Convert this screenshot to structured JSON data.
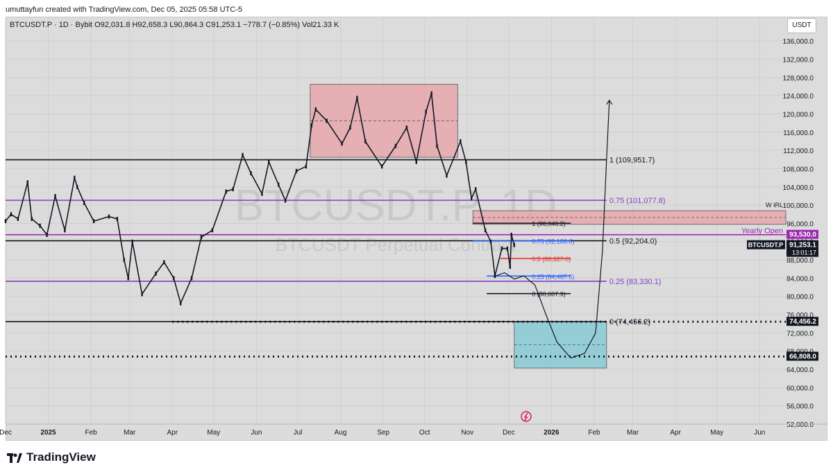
{
  "header": {
    "created_by": "umuttayfun created with TradingView.com, Dec 05, 2025 05:58 UTC-5"
  },
  "symbol_line": {
    "symbol": "BTCUSDT.P · 1D · Bybit",
    "ohlc": "O92,031.8  H92,658.3  L90,864.3  C91,253.1  −778.7 (−0.85%)  Vol21.33 K"
  },
  "currency": "USDT",
  "watermark": {
    "big": "BTCUSDT.P, 1D",
    "small": "BTCUSDT Perpetual Contract"
  },
  "footer": {
    "brand": "TradingView"
  },
  "chart_data": {
    "type": "candlestick",
    "instrument": "BTCUSDT.P",
    "interval": "1D",
    "exchange": "Bybit",
    "ylim": [
      52000,
      138000
    ],
    "y_ticks": [
      {
        "value": 52000,
        "label": "52,000.0"
      },
      {
        "value": 56000,
        "label": "56,000.0"
      },
      {
        "value": 60000,
        "label": "60,000.0"
      },
      {
        "value": 64000,
        "label": "64,000.0"
      },
      {
        "value": 68000,
        "label": "68,000.0"
      },
      {
        "value": 72000,
        "label": "72,000.0"
      },
      {
        "value": 76000,
        "label": "76,000.0"
      },
      {
        "value": 80000,
        "label": "80,000.0"
      },
      {
        "value": 84000,
        "label": "84,000.0"
      },
      {
        "value": 88000,
        "label": "88,000.0"
      },
      {
        "value": 92000,
        "label": "92,000.0"
      },
      {
        "value": 96000,
        "label": "96,000.0"
      },
      {
        "value": 100000,
        "label": "100,000.0"
      },
      {
        "value": 104000,
        "label": "104,000.0"
      },
      {
        "value": 108000,
        "label": "108,000.0"
      },
      {
        "value": 112000,
        "label": "112,000.0"
      },
      {
        "value": 116000,
        "label": "116,000.0"
      },
      {
        "value": 120000,
        "label": "120,000.0"
      },
      {
        "value": 124000,
        "label": "124,000.0"
      },
      {
        "value": 128000,
        "label": "128,000.0"
      },
      {
        "value": 132000,
        "label": "132,000.0"
      },
      {
        "value": 136000,
        "label": "136,000.0"
      }
    ],
    "x_ticks": [
      {
        "date": "2024-12-01",
        "label": "Dec"
      },
      {
        "date": "2025-01-01",
        "label": "2025"
      },
      {
        "date": "2025-02-01",
        "label": "Feb"
      },
      {
        "date": "2025-03-01",
        "label": "Mar"
      },
      {
        "date": "2025-04-01",
        "label": "Apr"
      },
      {
        "date": "2025-05-01",
        "label": "May"
      },
      {
        "date": "2025-06-01",
        "label": "Jun"
      },
      {
        "date": "2025-07-01",
        "label": "Jul"
      },
      {
        "date": "2025-08-01",
        "label": "Aug"
      },
      {
        "date": "2025-09-01",
        "label": "Sep"
      },
      {
        "date": "2025-10-01",
        "label": "Oct"
      },
      {
        "date": "2025-11-01",
        "label": "Nov"
      },
      {
        "date": "2025-12-01",
        "label": "Dec"
      },
      {
        "date": "2026-01-01",
        "label": "2026"
      },
      {
        "date": "2026-02-01",
        "label": "Feb"
      },
      {
        "date": "2026-03-01",
        "label": "Mar"
      },
      {
        "date": "2026-04-01",
        "label": "Apr"
      },
      {
        "date": "2026-05-01",
        "label": "May"
      },
      {
        "date": "2026-06-01",
        "label": "Jun"
      }
    ],
    "x_range": [
      "2024-12-01",
      "2026-06-20"
    ],
    "series": [
      {
        "close": [
          [
            "2024-12-01",
            96500
          ],
          [
            "2024-12-05",
            98000
          ],
          [
            "2024-12-10",
            97000
          ],
          [
            "2024-12-17",
            105000
          ],
          [
            "2024-12-20",
            97000
          ],
          [
            "2024-12-26",
            95500
          ],
          [
            "2024-12-31",
            93500
          ],
          [
            "2025-01-06",
            102000
          ],
          [
            "2025-01-13",
            94500
          ],
          [
            "2025-01-20",
            106000
          ],
          [
            "2025-01-22",
            104000
          ],
          [
            "2025-01-27",
            100500
          ],
          [
            "2025-02-03",
            96500
          ],
          [
            "2025-02-14",
            97500
          ],
          [
            "2025-02-20",
            97000
          ],
          [
            "2025-02-25",
            88000
          ],
          [
            "2025-02-28",
            84000
          ],
          [
            "2025-03-03",
            92000
          ],
          [
            "2025-03-10",
            80500
          ],
          [
            "2025-03-20",
            85000
          ],
          [
            "2025-03-26",
            87500
          ],
          [
            "2025-04-02",
            84000
          ],
          [
            "2025-04-07",
            78500
          ],
          [
            "2025-04-15",
            84000
          ],
          [
            "2025-04-22",
            93000
          ],
          [
            "2025-04-30",
            94500
          ],
          [
            "2025-05-10",
            103000
          ],
          [
            "2025-05-15",
            103500
          ],
          [
            "2025-05-22",
            111000
          ],
          [
            "2025-05-28",
            107000
          ],
          [
            "2025-06-05",
            102500
          ],
          [
            "2025-06-10",
            109500
          ],
          [
            "2025-06-17",
            104500
          ],
          [
            "2025-06-22",
            101000
          ],
          [
            "2025-06-30",
            107500
          ],
          [
            "2025-07-07",
            108500
          ],
          [
            "2025-07-11",
            117500
          ],
          [
            "2025-07-14",
            121000
          ],
          [
            "2025-07-22",
            118500
          ],
          [
            "2025-08-02",
            113500
          ],
          [
            "2025-08-08",
            117000
          ],
          [
            "2025-08-13",
            123500
          ],
          [
            "2025-08-19",
            114000
          ],
          [
            "2025-08-31",
            108500
          ],
          [
            "2025-09-10",
            113000
          ],
          [
            "2025-09-18",
            117000
          ],
          [
            "2025-09-25",
            109500
          ],
          [
            "2025-10-02",
            120500
          ],
          [
            "2025-10-06",
            124500
          ],
          [
            "2025-10-10",
            113000
          ],
          [
            "2025-10-17",
            106500
          ],
          [
            "2025-10-27",
            114000
          ],
          [
            "2025-10-31",
            109500
          ],
          [
            "2025-11-04",
            101500
          ],
          [
            "2025-11-07",
            103500
          ],
          [
            "2025-11-14",
            94500
          ],
          [
            "2025-11-18",
            92000
          ],
          [
            "2025-11-21",
            84500
          ],
          [
            "2025-11-26",
            90500
          ],
          [
            "2025-11-30",
            90500
          ],
          [
            "2025-12-02",
            86500
          ],
          [
            "2025-12-03",
            93500
          ],
          [
            "2025-12-05",
            91253.1
          ]
        ]
      }
    ],
    "levels": [
      {
        "name": "fib-1",
        "label": "1 (109,951.7)",
        "value": 109951.7,
        "color": "#131722",
        "style": "solid",
        "from": "2024-12-01",
        "to": "2026-02-10"
      },
      {
        "name": "fib-075",
        "label": "0.75 (101,077.8)",
        "value": 101077.8,
        "color": "#7e3fbf",
        "style": "solid",
        "from": "2024-12-01",
        "to": "2026-02-10"
      },
      {
        "name": "fib-05",
        "label": "0.5 (92,204.0)",
        "value": 92204.0,
        "color": "#131722",
        "style": "solid",
        "from": "2024-12-01",
        "to": "2026-02-10"
      },
      {
        "name": "fib-025",
        "label": "0.25 (83,330.1)",
        "value": 83330.1,
        "color": "#7e3fbf",
        "style": "solid",
        "from": "2024-12-01",
        "to": "2026-02-10"
      },
      {
        "name": "fib-0",
        "label": "0 (74,456.2)",
        "value": 74456.2,
        "color": "#131722",
        "style": "solid",
        "from": "2024-12-01",
        "to": "2026-02-10"
      },
      {
        "name": "low-dotted",
        "label": "",
        "value": 74456.2,
        "color": "#131722",
        "style": "dotted",
        "from": "2025-04-01",
        "to": "2026-06-20"
      },
      {
        "name": "low2-dotted",
        "label": "",
        "value": 66808.0,
        "color": "#131722",
        "style": "dotted",
        "from": "2024-12-01",
        "to": "2026-06-20"
      },
      {
        "name": "yearly-open",
        "label": "Yearly Open",
        "value": 93530.0,
        "color": "#9c27b0",
        "style": "solid",
        "from": "2024-12-01",
        "to": "2026-06-20"
      },
      {
        "name": "sub-fib-1",
        "label": "1 (96,046.2)",
        "value": 96046.2,
        "color": "#131722",
        "style": "solid",
        "from": "2025-11-05",
        "to": "2026-01-15"
      },
      {
        "name": "sub-fib-075",
        "label": "0.75 (92,186.6)",
        "value": 92186.6,
        "color": "#2962ff",
        "style": "solid",
        "from": "2025-11-05",
        "to": "2026-01-15"
      },
      {
        "name": "sub-fib-05",
        "label": "0.5 (88,327.0)",
        "value": 88327.0,
        "color": "#e53935",
        "style": "solid",
        "from": "2025-11-25",
        "to": "2026-01-15"
      },
      {
        "name": "sub-fib-025",
        "label": "0.25 (84,467.5)",
        "value": 84467.5,
        "color": "#2962ff",
        "style": "solid",
        "from": "2025-11-15",
        "to": "2026-01-15"
      },
      {
        "name": "sub-fib-0",
        "label": "0 (80,607.9)",
        "value": 80607.9,
        "color": "#131722",
        "style": "solid",
        "from": "2025-11-15",
        "to": "2026-01-15"
      }
    ],
    "zones": [
      {
        "name": "range-zone",
        "from": "2025-07-10",
        "to": "2025-10-25",
        "top": 126500,
        "bottom": 110500,
        "mid": 118500,
        "fill": "#e8a0a6",
        "label": ""
      },
      {
        "name": "w-irl-zone",
        "from": "2025-11-05",
        "to": "2026-06-20",
        "top": 98800,
        "bottom": 95800,
        "mid": 97300,
        "fill": "#e8a0a6",
        "label": "W IRL"
      },
      {
        "name": "target-zone",
        "from": "2025-12-05",
        "to": "2026-02-10",
        "top": 74456.2,
        "bottom": 64300,
        "mid": 69400,
        "fill": "#7ec8d4",
        "label": ""
      }
    ],
    "price_tags": [
      {
        "label": "93,530.0",
        "value": 93530.0,
        "bg": "#9c27b0",
        "fg": "#ffffff"
      },
      {
        "label": "91,253.1",
        "value": 91253.1,
        "bg": "#131722",
        "fg": "#ffffff",
        "sub": "13:01:17"
      },
      {
        "label": "74,456.2",
        "value": 74456.2,
        "bg": "#131722",
        "fg": "#ffffff"
      },
      {
        "label": "66,808.0",
        "value": 66808.0,
        "bg": "#131722",
        "fg": "#ffffff"
      }
    ],
    "symbol_tag": {
      "label": "BTCUSDT.P",
      "value": 91253.1
    },
    "projection_path": [
      [
        "2025-11-20",
        84300
      ],
      [
        "2025-11-28",
        85200
      ],
      [
        "2025-12-05",
        83800
      ],
      [
        "2025-12-12",
        84500
      ],
      [
        "2025-12-20",
        82500
      ],
      [
        "2025-12-28",
        76000
      ],
      [
        "2026-01-05",
        70000
      ],
      [
        "2026-01-15",
        66500
      ],
      [
        "2026-01-25",
        67500
      ],
      [
        "2026-02-02",
        72000
      ],
      [
        "2026-02-07",
        90000
      ],
      [
        "2026-02-10",
        110000
      ],
      [
        "2026-02-12",
        123000
      ]
    ]
  }
}
